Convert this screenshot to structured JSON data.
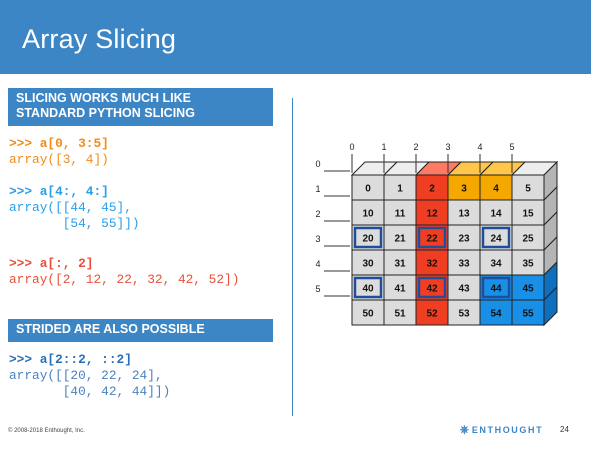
{
  "title": "Array Slicing",
  "section1": {
    "header_line1": "SLICING WORKS MUCH LIKE",
    "header_line2": "STANDARD PYTHON SLICING"
  },
  "examples": [
    {
      "prompt": ">>> a[0, 3:5]",
      "output": "array([3, 4])"
    },
    {
      "prompt": ">>> a[4:, 4:]",
      "output_line1": "array([[44, 45],",
      "output_line2": "       [54, 55]])"
    },
    {
      "prompt": ">>> a[:, 2]",
      "output": "array([2, 12, 22, 32, 42, 52])"
    }
  ],
  "section2": {
    "header": "STRIDED ARE ALSO POSSIBLE"
  },
  "strided": {
    "prompt": ">>> a[2::2, ::2]",
    "output_line1": "array([[20, 22, 24],",
    "output_line2": "       [40, 42, 44]])"
  },
  "grid": {
    "col_labels": [
      "0",
      "1",
      "2",
      "3",
      "4",
      "5"
    ],
    "row_labels": [
      "0",
      "1",
      "2",
      "3",
      "4",
      "5"
    ],
    "values": [
      [
        "0",
        "1",
        "2",
        "3",
        "4",
        "5"
      ],
      [
        "10",
        "11",
        "12",
        "13",
        "14",
        "15"
      ],
      [
        "20",
        "21",
        "22",
        "23",
        "24",
        "25"
      ],
      [
        "30",
        "31",
        "32",
        "33",
        "34",
        "35"
      ],
      [
        "40",
        "41",
        "42",
        "43",
        "44",
        "45"
      ],
      [
        "50",
        "51",
        "52",
        "53",
        "54",
        "55"
      ]
    ],
    "highlights": {
      "orange": [
        [
          0,
          3
        ],
        [
          0,
          4
        ]
      ],
      "red_column": 2,
      "blue": [
        [
          4,
          4
        ],
        [
          4,
          5
        ],
        [
          5,
          4
        ],
        [
          5,
          5
        ]
      ],
      "outlined": [
        [
          2,
          0
        ],
        [
          2,
          2
        ],
        [
          2,
          4
        ],
        [
          4,
          0
        ],
        [
          4,
          2
        ],
        [
          4,
          4
        ]
      ]
    },
    "colors": {
      "gray": "#dcdcdc",
      "orange": "#f5a800",
      "red": "#ef3e22",
      "blue": "#1a8fe6",
      "outline": "#1f4e9c"
    }
  },
  "footer": {
    "copyright": "© 2008-2018 Enthought, Inc.",
    "logo_icon": "enthought-logo-icon",
    "brand": "ENTHOUGHT",
    "page": "24"
  }
}
